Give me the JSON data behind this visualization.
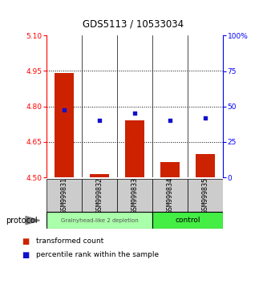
{
  "title": "GDS5113 / 10533034",
  "samples": [
    "GSM999831",
    "GSM999832",
    "GSM999833",
    "GSM999834",
    "GSM999835"
  ],
  "bar_baseline": 4.5,
  "bar_tops": [
    4.94,
    4.515,
    4.74,
    4.565,
    4.6
  ],
  "blue_y": [
    4.784,
    4.742,
    4.772,
    4.742,
    4.752
  ],
  "ylim": [
    4.5,
    5.1
  ],
  "yticks_left": [
    4.5,
    4.65,
    4.8,
    4.95,
    5.1
  ],
  "hlines": [
    4.65,
    4.8,
    4.95
  ],
  "bar_color": "#cc2200",
  "blue_color": "#1111cc",
  "group1_label": "Grainyhead-like 2 depletion",
  "group2_label": "control",
  "group1_color": "#aaffaa",
  "group2_color": "#44ee44",
  "protocol_label": "protocol",
  "legend_red": "transformed count",
  "legend_blue": "percentile rank within the sample",
  "bar_width": 0.55,
  "x_positions": [
    0,
    1,
    2,
    3,
    4
  ],
  "label_box_color": "#cccccc",
  "title_fontsize": 8.5,
  "tick_fontsize": 6.5,
  "label_fontsize": 6
}
